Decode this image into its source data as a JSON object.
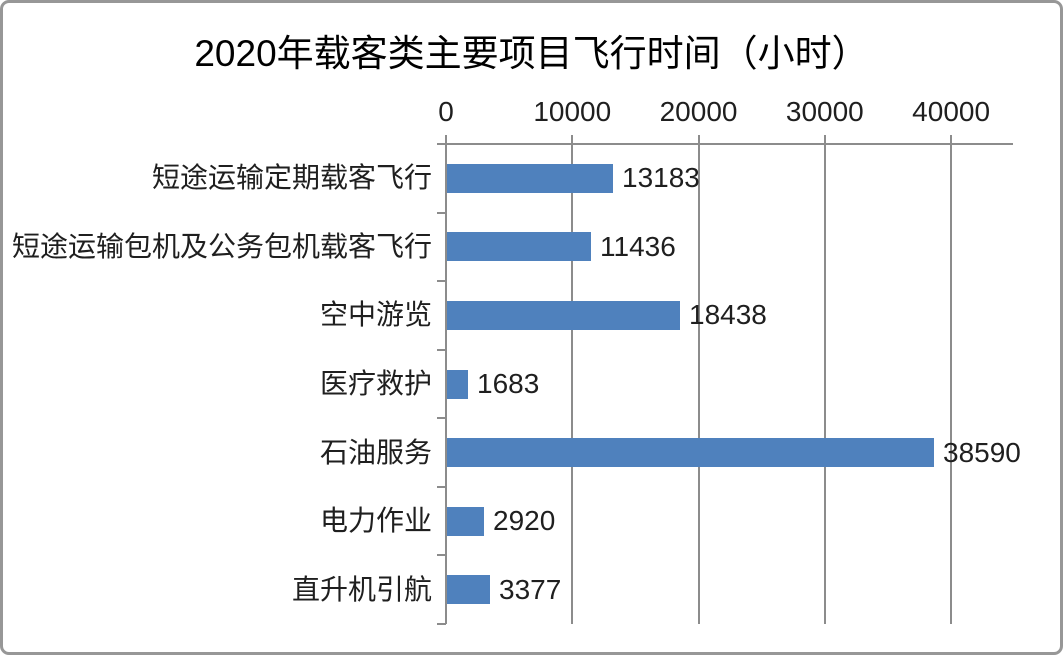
{
  "chart_data": {
    "type": "bar",
    "orientation": "horizontal",
    "title": "2020年载客类主要项目飞行时间（小时）",
    "categories": [
      "短途运输定期载客飞行",
      "短途运输包机及公务包机载客飞行",
      "空中游览",
      "医疗救护",
      "石油服务",
      "电力作业",
      "直升机引航"
    ],
    "values": [
      13183,
      11436,
      18438,
      1683,
      38590,
      2920,
      3377
    ],
    "x_ticks": [
      0,
      10000,
      20000,
      30000,
      40000
    ],
    "x_tick_labels": [
      "0",
      "10000",
      "20000",
      "30000",
      "40000"
    ],
    "xlim": [
      0,
      44900
    ],
    "grid": true,
    "legend": "none",
    "data_labels": true,
    "colors": {
      "bar": "#4F81BD",
      "axis": "#8C8C8C",
      "grid": "#8C8C8C",
      "text": "#1f1f1f",
      "frame_border": "#979797",
      "background": "#ffffff"
    }
  }
}
